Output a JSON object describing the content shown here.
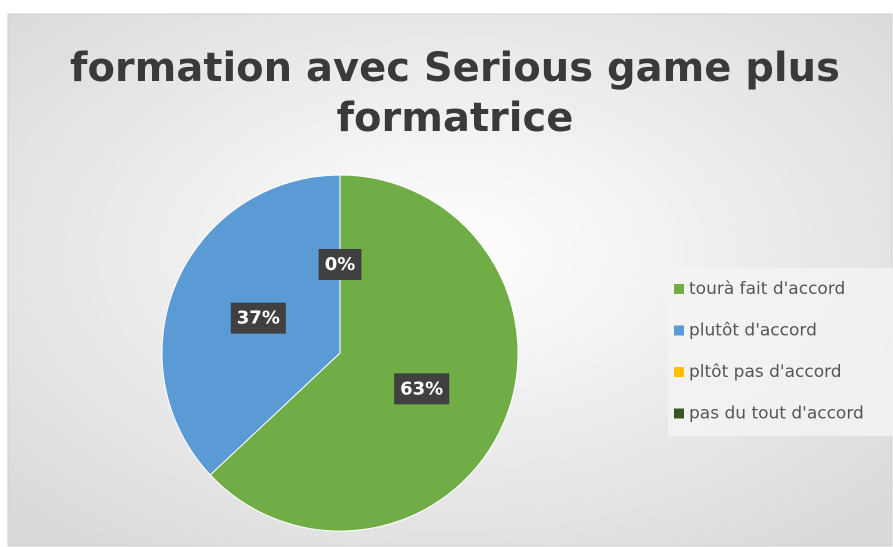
{
  "chart_data": {
    "type": "pie",
    "title": [
      "formation avec Serious game plus",
      "formatrice"
    ],
    "categories": [
      "tourà fait d'accord",
      "plutôt d'accord",
      "pltôt pas d'accord",
      "pas du tout d'accord"
    ],
    "values": [
      63,
      37,
      0,
      0
    ],
    "value_labels": [
      "63%",
      "37%",
      "0%",
      "0%"
    ],
    "colors": [
      "#70ad47",
      "#5b9bd5",
      "#ffc000",
      "#375623"
    ],
    "legend": "right"
  }
}
